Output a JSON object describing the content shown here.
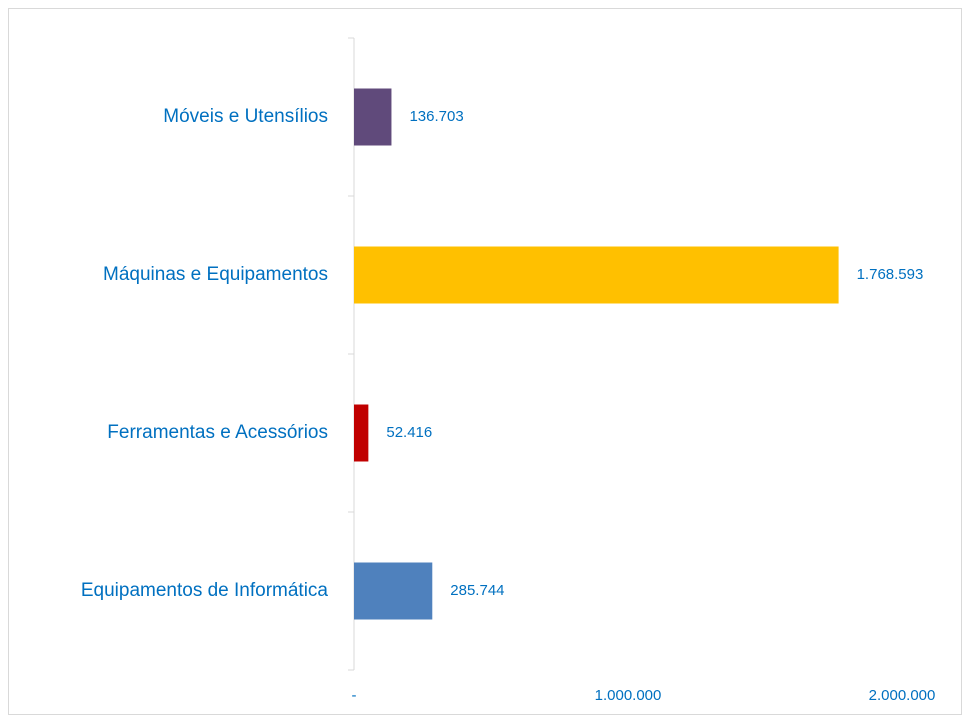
{
  "chart_data": {
    "type": "bar",
    "orientation": "horizontal",
    "categories": [
      "Móveis e Utensílios",
      "Máquinas e Equipamentos",
      "Ferramentas e Acessórios",
      "Equipamentos de Informática"
    ],
    "values": [
      136703,
      1768593,
      52416,
      285744
    ],
    "value_labels": [
      "136.703",
      "1.768.593",
      "52.416",
      "285.744"
    ],
    "colors": [
      "#604a7b",
      "#ffc000",
      "#c00000",
      "#4f81bd"
    ],
    "xlim": [
      0,
      2000000
    ],
    "xticks": [
      {
        "value": 0,
        "label": "-"
      },
      {
        "value": 1000000,
        "label": "1.000.000"
      },
      {
        "value": 2000000,
        "label": "2.000.000"
      }
    ],
    "grid": false
  }
}
